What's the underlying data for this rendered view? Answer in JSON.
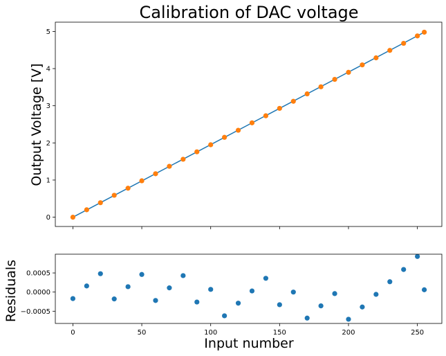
{
  "chart_data": [
    {
      "type": "line",
      "title": "Calibration of DAC voltage",
      "xlabel": "",
      "ylabel": "Output Voltage [V]",
      "xlim": [
        -12.75,
        267.75
      ],
      "ylim": [
        -0.25,
        5.25
      ],
      "xticks": [
        0,
        50,
        100,
        150,
        200,
        250
      ],
      "xtick_labels_shown": false,
      "yticks": [
        0,
        1,
        2,
        3,
        4,
        5
      ],
      "ytick_labels": [
        "0",
        "1",
        "2",
        "3",
        "4",
        "5"
      ],
      "grid": false,
      "series": [
        {
          "kind": "line",
          "color": "#1f77b4",
          "x": [
            0,
            255
          ],
          "y": [
            0.0,
            4.98
          ]
        },
        {
          "kind": "scatter",
          "color": "#ff7f0e",
          "x": [
            0,
            10,
            20,
            30,
            40,
            50,
            60,
            70,
            80,
            90,
            100,
            110,
            120,
            130,
            140,
            150,
            160,
            170,
            180,
            190,
            200,
            210,
            220,
            230,
            240,
            250,
            255
          ],
          "y": [
            0.0,
            0.2,
            0.39,
            0.59,
            0.78,
            0.98,
            1.17,
            1.37,
            1.56,
            1.76,
            1.95,
            2.15,
            2.34,
            2.54,
            2.73,
            2.93,
            3.12,
            3.32,
            3.51,
            3.71,
            3.9,
            4.1,
            4.29,
            4.49,
            4.68,
            4.88,
            4.98
          ]
        }
      ]
    },
    {
      "type": "scatter",
      "title": "",
      "xlabel": "Input number",
      "ylabel": "Residuals",
      "xlim": [
        -12.75,
        267.75
      ],
      "ylim": [
        -0.00082,
        0.00099
      ],
      "xticks": [
        0,
        50,
        100,
        150,
        200,
        250
      ],
      "xtick_labels": [
        "0",
        "50",
        "100",
        "150",
        "200",
        "250"
      ],
      "yticks": [
        -0.0005,
        0.0,
        0.0005
      ],
      "ytick_labels": [
        "−0.0005",
        "0.0000",
        "0.0005"
      ],
      "grid": false,
      "series": [
        {
          "kind": "scatter",
          "color": "#1f77b4",
          "x": [
            0,
            10,
            20,
            30,
            40,
            50,
            60,
            70,
            80,
            90,
            100,
            110,
            120,
            130,
            140,
            150,
            160,
            170,
            180,
            190,
            200,
            210,
            220,
            230,
            240,
            250,
            255
          ],
          "y": [
            -0.00017,
            0.00016,
            0.00048,
            -0.00018,
            0.00014,
            0.00046,
            -0.00022,
            0.00011,
            0.00043,
            -0.00026,
            7e-05,
            -0.00062,
            -0.00029,
            3e-05,
            0.00036,
            -0.00033,
            0.0,
            -0.00068,
            -0.00036,
            -4e-05,
            -0.00071,
            -0.00039,
            -6e-05,
            0.00027,
            0.00059,
            0.00093,
            6e-05
          ]
        }
      ]
    }
  ]
}
